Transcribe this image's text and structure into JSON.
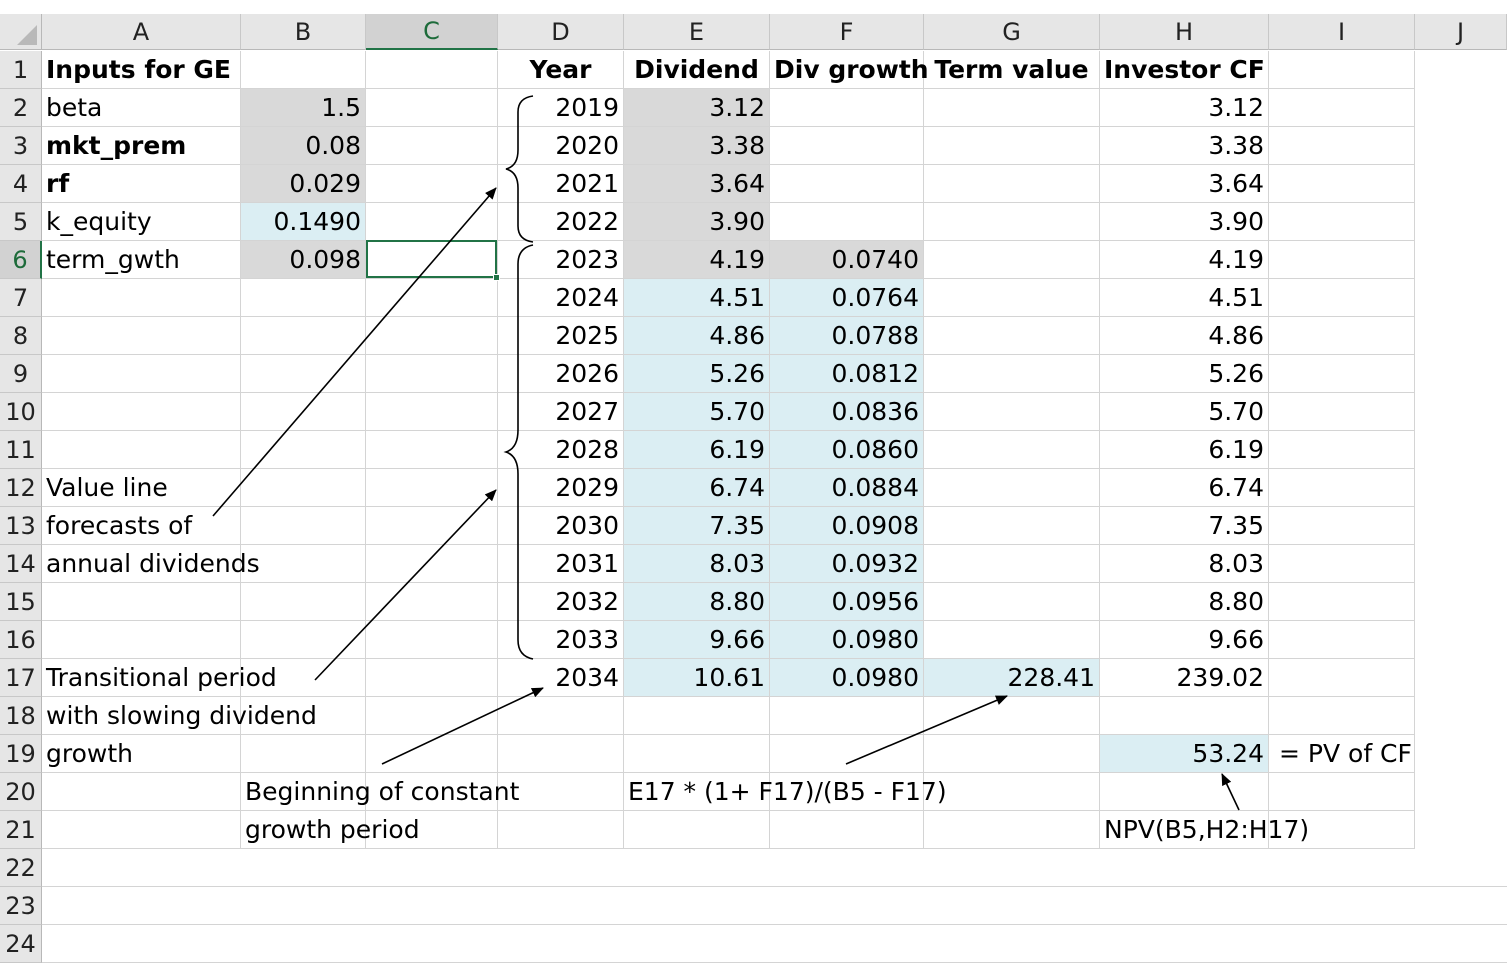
{
  "columns": [
    "A",
    "B",
    "C",
    "D",
    "E",
    "F",
    "G",
    "H",
    "I",
    "J"
  ],
  "selected_column": "C",
  "selected_row": "6",
  "rows": [
    "1",
    "2",
    "3",
    "4",
    "5",
    "6",
    "7",
    "8",
    "9",
    "10",
    "11",
    "12",
    "13",
    "14",
    "15",
    "16",
    "17",
    "18",
    "19",
    "20",
    "21",
    "22",
    "23",
    "24"
  ],
  "inputs": {
    "title": "Inputs for GE",
    "labels": [
      "beta",
      "mkt_prem",
      "rf",
      "k_equity",
      "term_gwth"
    ],
    "values": [
      "1.5",
      "0.08",
      "0.029",
      "0.1490",
      "0.098"
    ]
  },
  "headers": {
    "year": "Year",
    "dividend": "Dividend",
    "div_growth": "Div growth",
    "term_value": "Term value",
    "investor_cf": "Investor CF"
  },
  "table": [
    {
      "year": "2019",
      "dividend": "3.12",
      "growth": "",
      "term": "",
      "cf": "3.12"
    },
    {
      "year": "2020",
      "dividend": "3.38",
      "growth": "",
      "term": "",
      "cf": "3.38"
    },
    {
      "year": "2021",
      "dividend": "3.64",
      "growth": "",
      "term": "",
      "cf": "3.64"
    },
    {
      "year": "2022",
      "dividend": "3.90",
      "growth": "",
      "term": "",
      "cf": "3.90"
    },
    {
      "year": "2023",
      "dividend": "4.19",
      "growth": "0.0740",
      "term": "",
      "cf": "4.19"
    },
    {
      "year": "2024",
      "dividend": "4.51",
      "growth": "0.0764",
      "term": "",
      "cf": "4.51"
    },
    {
      "year": "2025",
      "dividend": "4.86",
      "growth": "0.0788",
      "term": "",
      "cf": "4.86"
    },
    {
      "year": "2026",
      "dividend": "5.26",
      "growth": "0.0812",
      "term": "",
      "cf": "5.26"
    },
    {
      "year": "2027",
      "dividend": "5.70",
      "growth": "0.0836",
      "term": "",
      "cf": "5.70"
    },
    {
      "year": "2028",
      "dividend": "6.19",
      "growth": "0.0860",
      "term": "",
      "cf": "6.19"
    },
    {
      "year": "2029",
      "dividend": "6.74",
      "growth": "0.0884",
      "term": "",
      "cf": "6.74"
    },
    {
      "year": "2030",
      "dividend": "7.35",
      "growth": "0.0908",
      "term": "",
      "cf": "7.35"
    },
    {
      "year": "2031",
      "dividend": "8.03",
      "growth": "0.0932",
      "term": "",
      "cf": "8.03"
    },
    {
      "year": "2032",
      "dividend": "8.80",
      "growth": "0.0956",
      "term": "",
      "cf": "8.80"
    },
    {
      "year": "2033",
      "dividend": "9.66",
      "growth": "0.0980",
      "term": "",
      "cf": "9.66"
    },
    {
      "year": "2034",
      "dividend": "10.61",
      "growth": "0.0980",
      "term": "228.41",
      "cf": "239.02"
    }
  ],
  "pv": {
    "value": "53.24",
    "label": "= PV of CF"
  },
  "notes": {
    "value_line": [
      "Value line",
      "forecasts of",
      "annual dividends"
    ],
    "transitional": [
      "Transitional period",
      "with slowing dividend",
      "growth"
    ],
    "constant_growth": [
      "Beginning of constant",
      "growth period"
    ],
    "term_formula": "E17 * (1+ F17)/(B5 - F17)",
    "npv_formula": "NPV(B5,H2:H17)"
  },
  "colors": {
    "input_gray": "#d9d9d9",
    "calc_blue": "#dbeef3",
    "selection_green": "#217346"
  }
}
